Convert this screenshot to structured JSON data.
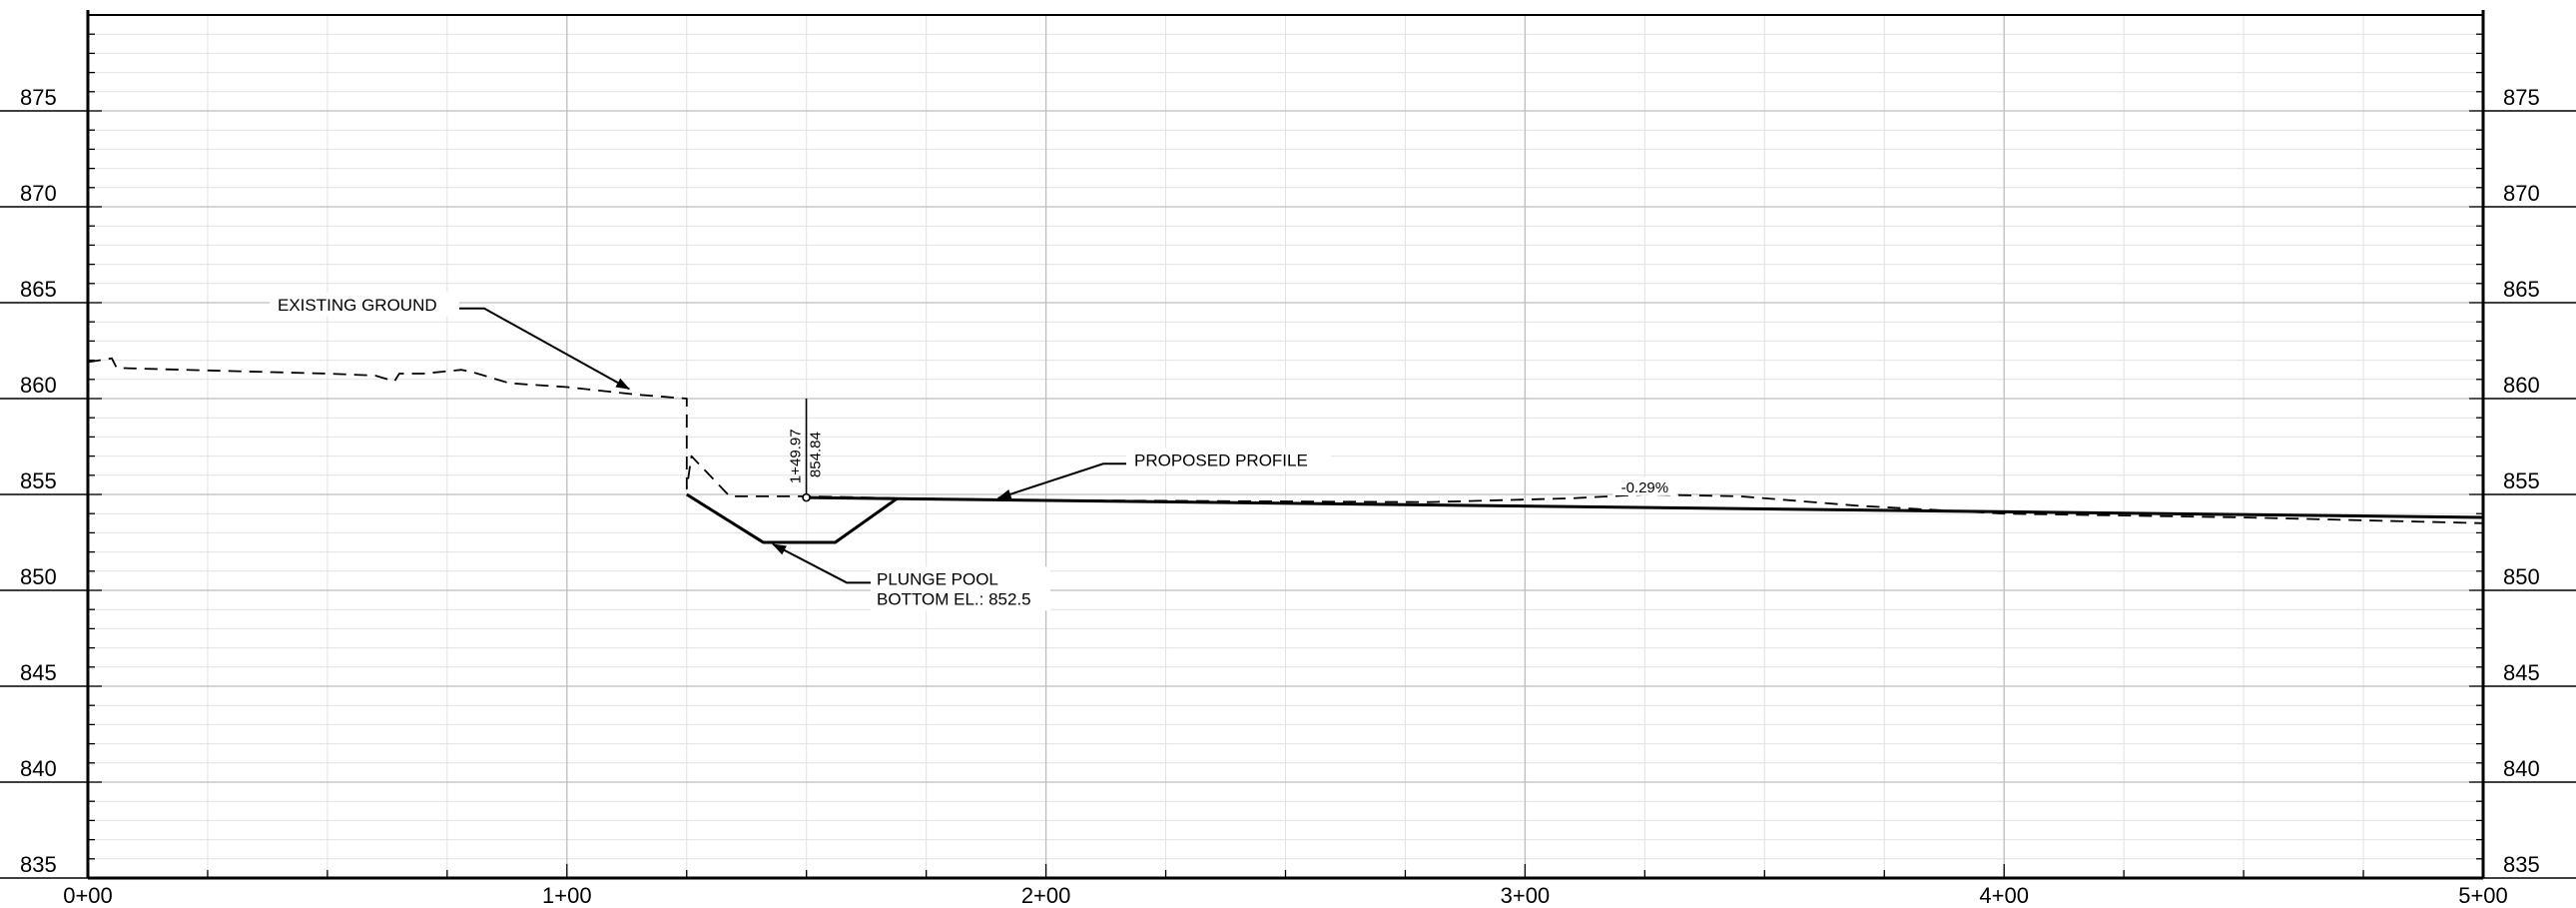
{
  "chart_data": {
    "type": "line",
    "title": "",
    "xlabel": "",
    "ylabel": "",
    "x_unit": "station (ft)",
    "xlim": [
      0,
      500
    ],
    "ylim": [
      835,
      880
    ],
    "grid": true,
    "x_ticks": [
      {
        "value": 0,
        "label": "0+00"
      },
      {
        "value": 100,
        "label": "1+00"
      },
      {
        "value": 200,
        "label": "2+00"
      },
      {
        "value": 300,
        "label": "3+00"
      },
      {
        "value": 400,
        "label": "4+00"
      },
      {
        "value": 500,
        "label": "5+00"
      }
    ],
    "y_ticks": [
      {
        "value": 835,
        "label": "835"
      },
      {
        "value": 840,
        "label": "840"
      },
      {
        "value": 845,
        "label": "845"
      },
      {
        "value": 850,
        "label": "850"
      },
      {
        "value": 855,
        "label": "855"
      },
      {
        "value": 860,
        "label": "860"
      },
      {
        "value": 865,
        "label": "865"
      },
      {
        "value": 870,
        "label": "870"
      },
      {
        "value": 875,
        "label": "875"
      }
    ],
    "series": [
      {
        "name": "EXISTING GROUND",
        "style": "dashed",
        "color": "#000000",
        "points": [
          [
            0,
            861.9
          ],
          [
            5,
            862.1
          ],
          [
            6,
            861.6
          ],
          [
            20,
            861.5
          ],
          [
            50,
            861.3
          ],
          [
            60,
            861.2
          ],
          [
            64,
            860.9
          ],
          [
            65,
            861.3
          ],
          [
            70,
            861.3
          ],
          [
            78,
            861.5
          ],
          [
            80,
            861.4
          ],
          [
            88,
            860.8
          ],
          [
            100,
            860.6
          ],
          [
            115,
            860.2
          ],
          [
            125,
            860.0
          ],
          [
            125,
            855.3
          ],
          [
            126,
            857.0
          ],
          [
            134,
            854.9
          ],
          [
            150,
            854.9
          ],
          [
            170,
            854.8
          ],
          [
            200,
            854.7
          ],
          [
            280,
            854.6
          ],
          [
            310,
            854.8
          ],
          [
            325,
            855.0
          ],
          [
            345,
            854.9
          ],
          [
            370,
            854.4
          ],
          [
            400,
            854.0
          ],
          [
            450,
            853.8
          ],
          [
            500,
            853.5
          ]
        ]
      },
      {
        "name": "PROPOSED PROFILE",
        "style": "solid",
        "color": "#000000",
        "points": [
          [
            149.97,
            854.84
          ],
          [
            500,
            853.8
          ]
        ]
      },
      {
        "name": "PLUNGE POOL",
        "style": "solid",
        "color": "#000000",
        "points": [
          [
            125,
            855.0
          ],
          [
            141,
            852.5
          ],
          [
            156,
            852.5
          ],
          [
            169,
            854.8
          ]
        ]
      }
    ],
    "annotations": {
      "existing_ground": "EXISTING GROUND",
      "proposed_profile": "PROPOSED PROFILE",
      "plunge_pool_line1": "PLUNGE POOL",
      "plunge_pool_line2": "BOTTOM EL.: 852.5",
      "grade": "-0.29%",
      "pvi_station": "1+49.97",
      "pvi_elevation": "854.84"
    },
    "annotation_points": {
      "existing_ground": [
        113,
        860.5
      ],
      "proposed_profile": [
        190,
        854.8
      ],
      "plunge_pool": [
        143,
        852.4
      ],
      "grade": [
        325,
        854.9
      ],
      "pvi": [
        149.97,
        854.84
      ]
    }
  }
}
